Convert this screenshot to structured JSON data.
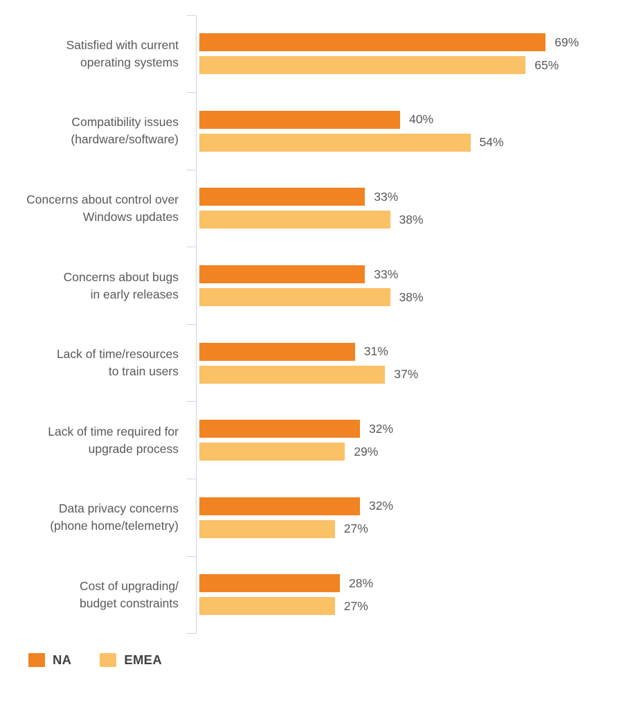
{
  "chart_data": {
    "type": "bar",
    "orientation": "horizontal",
    "title": "",
    "unit": "%",
    "xlim": [
      0,
      84
    ],
    "grid": false,
    "legend_position": "bottom-left",
    "categories": [
      [
        "Satisfied with current",
        "operating systems"
      ],
      [
        "Compatibility issues",
        "(hardware/software)"
      ],
      [
        "Concerns about control over",
        "Windows updates"
      ],
      [
        "Concerns about bugs",
        "in early releases"
      ],
      [
        "Lack of time/resources",
        "to train users"
      ],
      [
        "Lack of time required for",
        "upgrade process"
      ],
      [
        "Data privacy concerns",
        "(phone home/telemetry)"
      ],
      [
        "Cost of upgrading/",
        "budget constraints"
      ]
    ],
    "series": [
      {
        "name": "NA",
        "color": "#F28322",
        "values": [
          69,
          40,
          33,
          33,
          31,
          32,
          32,
          28
        ]
      },
      {
        "name": "EMEA",
        "color": "#FBC166",
        "values": [
          65,
          54,
          38,
          38,
          37,
          29,
          27,
          27
        ]
      }
    ]
  },
  "legend": {
    "items": [
      {
        "label": "NA",
        "color": "#F28322"
      },
      {
        "label": "EMEA",
        "color": "#FBC166"
      }
    ]
  },
  "colors": {
    "axis": "#C7D7E9",
    "label_text": "#58595B",
    "value_text": "#58595B",
    "legend_text": "#3F4042"
  }
}
